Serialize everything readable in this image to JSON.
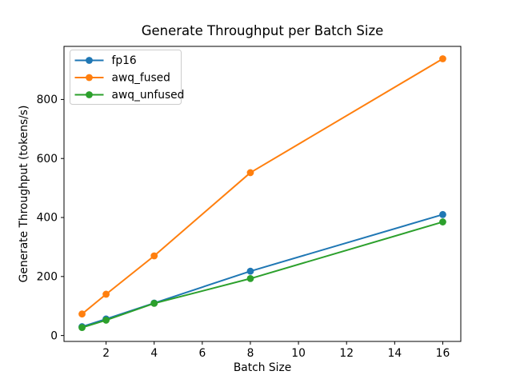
{
  "chart_data": {
    "type": "line",
    "title": "Generate Throughput per Batch Size",
    "xlabel": "Batch Size",
    "ylabel": "Generate Throughput (tokens/s)",
    "x": [
      1,
      2,
      4,
      8,
      16
    ],
    "series": [
      {
        "name": "fp16",
        "color": "#1f77b4",
        "values": [
          30,
          56,
          110,
          218,
          410
        ]
      },
      {
        "name": "awq_fused",
        "color": "#ff7f0e",
        "values": [
          73,
          140,
          270,
          552,
          938
        ]
      },
      {
        "name": "awq_unfused",
        "color": "#2ca02c",
        "values": [
          27,
          52,
          109,
          193,
          385
        ]
      }
    ],
    "xticks": [
      2,
      4,
      6,
      8,
      10,
      12,
      14,
      16
    ],
    "yticks": [
      0,
      200,
      400,
      600,
      800
    ],
    "xlim": [
      0.25,
      16.75
    ],
    "ylim": [
      -20,
      980
    ],
    "grid": false,
    "legend_position": "upper left",
    "marker": "o",
    "background_color": "#ffffff",
    "axes_edge_color": "#000000",
    "legend_border_color": "#cccccc"
  }
}
